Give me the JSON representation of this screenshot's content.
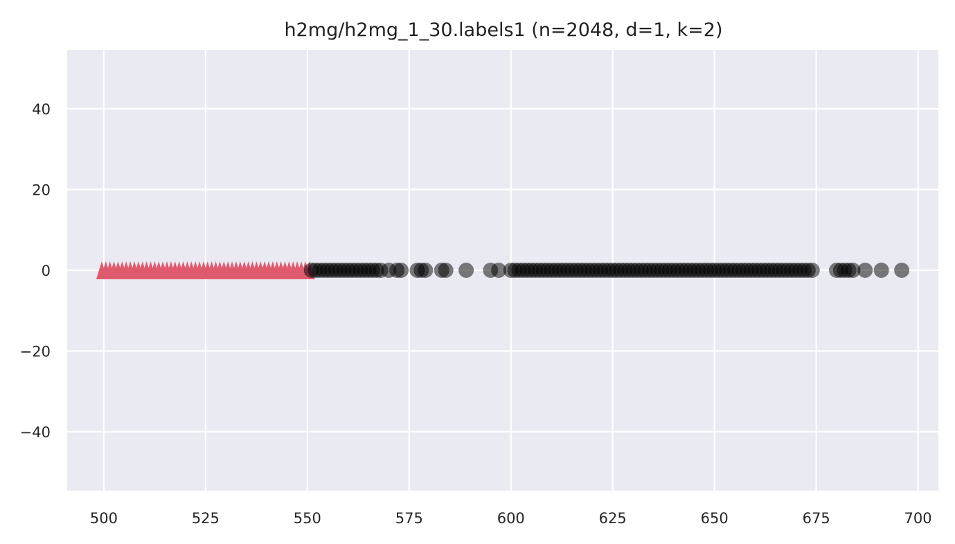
{
  "chart_data": {
    "type": "scatter",
    "title": "h2mg/h2mg_1_30.labels1 (n=2048, d=1, k=2)",
    "xlabel": "",
    "ylabel": "",
    "xlim": [
      491.0,
      705.0
    ],
    "ylim": [
      -54.6,
      54.6
    ],
    "x_ticks": [
      500,
      525,
      550,
      575,
      600,
      625,
      650,
      675,
      700
    ],
    "x_tick_labels": [
      "500",
      "525",
      "550",
      "575",
      "600",
      "625",
      "650",
      "675",
      "700"
    ],
    "y_ticks": [
      40,
      20,
      0,
      -20,
      -40
    ],
    "y_tick_labels": [
      "40",
      "20",
      "0",
      "−20",
      "−40"
    ],
    "grid": true,
    "legend": "none",
    "background_color": "#eaeaf2",
    "grid_color": "#ffffff",
    "series": [
      {
        "marker": "triangle",
        "color": "#e05a6e",
        "opacity": 1.0,
        "x": [
          499.5,
          500.5,
          501.5,
          502.5,
          503.5,
          504.5,
          505.5,
          506.5,
          507.5,
          508.5,
          509.5,
          510.5,
          511.5,
          512.5,
          513.5,
          514.5,
          515.5,
          516.5,
          517.5,
          518.5,
          519.5,
          520.5,
          521.5,
          522.5,
          523.5,
          524.5,
          525.5,
          526.5,
          527.5,
          528.5,
          529.5,
          530.5,
          531.5,
          532.5,
          533.5,
          534.5,
          535.5,
          536.5,
          537.5,
          538.5,
          539.5,
          540.5,
          541.5,
          542.5,
          543.5,
          544.5,
          545.5,
          546.5,
          547.5,
          548.5,
          549.5,
          550.5
        ],
        "y": [
          0,
          0,
          0,
          0,
          0,
          0,
          0,
          0,
          0,
          0,
          0,
          0,
          0,
          0,
          0,
          0,
          0,
          0,
          0,
          0,
          0,
          0,
          0,
          0,
          0,
          0,
          0,
          0,
          0,
          0,
          0,
          0,
          0,
          0,
          0,
          0,
          0,
          0,
          0,
          0,
          0,
          0,
          0,
          0,
          0,
          0,
          0,
          0,
          0,
          0,
          0,
          0
        ]
      },
      {
        "marker": "circle",
        "color": "#000000",
        "opacity": 0.5,
        "x": [
          551,
          552,
          553,
          554,
          555,
          556,
          557,
          558,
          559,
          560,
          561,
          562,
          563,
          564,
          565,
          566,
          567,
          568,
          570,
          572,
          573,
          577,
          578,
          579,
          583,
          584,
          589,
          595,
          597,
          600,
          601,
          602,
          603,
          604,
          605,
          606,
          607,
          608,
          609,
          610,
          611,
          612,
          613,
          614,
          615,
          616,
          617,
          618,
          619,
          620,
          621,
          622,
          623,
          624,
          625,
          626,
          627,
          628,
          629,
          630,
          631,
          632,
          633,
          634,
          635,
          636,
          637,
          638,
          639,
          640,
          641,
          642,
          643,
          644,
          645,
          646,
          647,
          648,
          649,
          650,
          651,
          652,
          653,
          654,
          655,
          656,
          657,
          658,
          659,
          660,
          661,
          662,
          663,
          664,
          665,
          666,
          667,
          668,
          669,
          670,
          671,
          672,
          673,
          674,
          680,
          681,
          682,
          683,
          684,
          687,
          691,
          696
        ],
        "y": [
          0,
          0,
          0,
          0,
          0,
          0,
          0,
          0,
          0,
          0,
          0,
          0,
          0,
          0,
          0,
          0,
          0,
          0,
          0,
          0,
          0,
          0,
          0,
          0,
          0,
          0,
          0,
          0,
          0,
          0,
          0,
          0,
          0,
          0,
          0,
          0,
          0,
          0,
          0,
          0,
          0,
          0,
          0,
          0,
          0,
          0,
          0,
          0,
          0,
          0,
          0,
          0,
          0,
          0,
          0,
          0,
          0,
          0,
          0,
          0,
          0,
          0,
          0,
          0,
          0,
          0,
          0,
          0,
          0,
          0,
          0,
          0,
          0,
          0,
          0,
          0,
          0,
          0,
          0,
          0,
          0,
          0,
          0,
          0,
          0,
          0,
          0,
          0,
          0,
          0,
          0,
          0,
          0,
          0,
          0,
          0,
          0,
          0,
          0,
          0,
          0,
          0,
          0,
          0,
          0,
          0,
          0,
          0,
          0,
          0,
          0,
          0
        ]
      }
    ]
  }
}
